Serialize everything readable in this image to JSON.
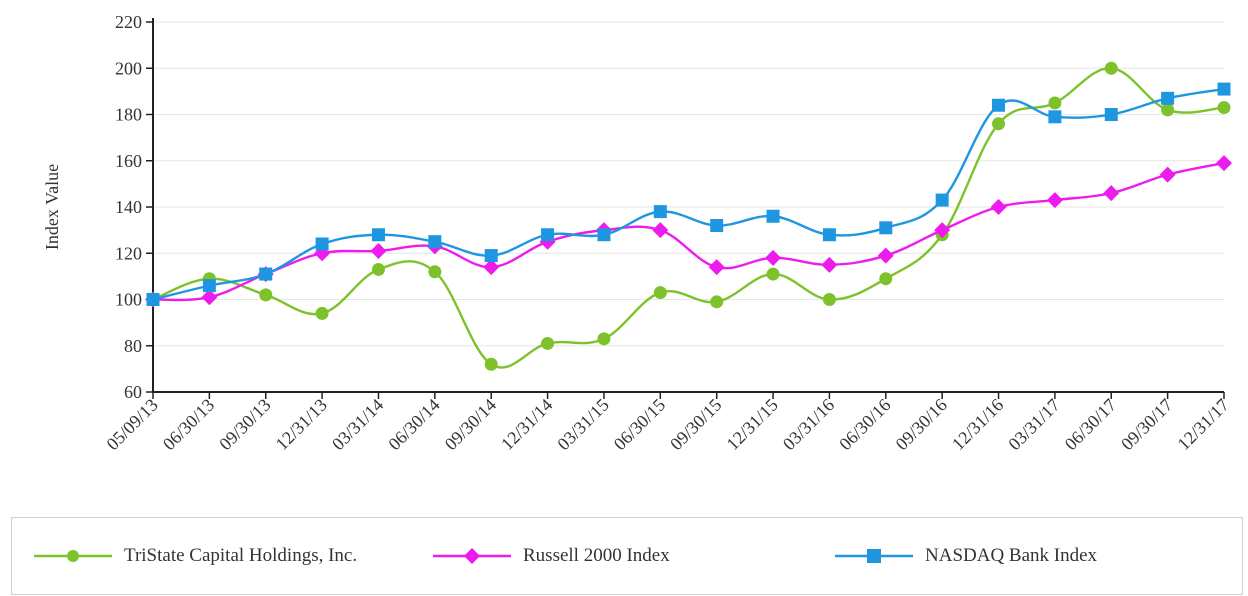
{
  "chart_data": {
    "type": "line",
    "ylabel": "Index Value",
    "xlabel": "",
    "ylim": [
      60,
      220
    ],
    "yticks": [
      60,
      80,
      100,
      120,
      140,
      160,
      180,
      200,
      220
    ],
    "grid": true,
    "legend_position": "bottom",
    "categories": [
      "05/09/13",
      "06/30/13",
      "09/30/13",
      "12/31/13",
      "03/31/14",
      "06/30/14",
      "09/30/14",
      "12/31/14",
      "03/31/15",
      "06/30/15",
      "09/30/15",
      "12/31/15",
      "03/31/16",
      "06/30/16",
      "09/30/16",
      "12/31/16",
      "03/31/17",
      "06/30/17",
      "09/30/17",
      "12/31/17"
    ],
    "series": [
      {
        "name": "TriState Capital Holdings, Inc.",
        "color": "#7dc22b",
        "marker": "circle",
        "values": [
          100,
          109,
          102,
          94,
          113,
          112,
          72,
          81,
          83,
          103,
          99,
          111,
          100,
          109,
          128,
          176,
          185,
          200,
          182,
          183
        ]
      },
      {
        "name": "Russell 2000 Index",
        "color": "#ee1bee",
        "marker": "diamond",
        "values": [
          100,
          101,
          111,
          120,
          121,
          123,
          114,
          125,
          130,
          130,
          114,
          118,
          115,
          119,
          130,
          140,
          143,
          146,
          154,
          159
        ]
      },
      {
        "name": "NASDAQ Bank Index",
        "color": "#1e96e0",
        "marker": "square",
        "values": [
          100,
          106,
          111,
          124,
          128,
          125,
          119,
          128,
          128,
          138,
          132,
          136,
          128,
          131,
          143,
          184,
          179,
          180,
          187,
          191
        ]
      }
    ]
  }
}
